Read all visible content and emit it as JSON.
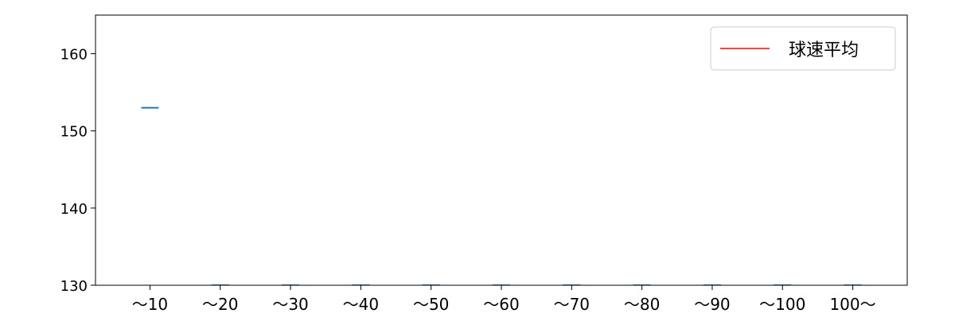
{
  "chart_data": {
    "type": "line",
    "title": "",
    "xlabel": "",
    "ylabel": "",
    "categories": [
      "～10",
      "～20",
      "～30",
      "～40",
      "～50",
      "～60",
      "～70",
      "～80",
      "～90",
      "～100",
      "100～"
    ],
    "series": [
      {
        "values": [
          153,
          0,
          0,
          0,
          0,
          0,
          0,
          0,
          0,
          0,
          0
        ],
        "color": "#1f77b4",
        "style": "horizontal-segment"
      }
    ],
    "legend": {
      "entries": [
        {
          "label": "球速平均",
          "color": "#ff0000"
        }
      ],
      "placement": "top-right"
    },
    "ylim": [
      130,
      165
    ],
    "yticks": [
      130,
      140,
      150,
      160
    ],
    "grid": false
  }
}
